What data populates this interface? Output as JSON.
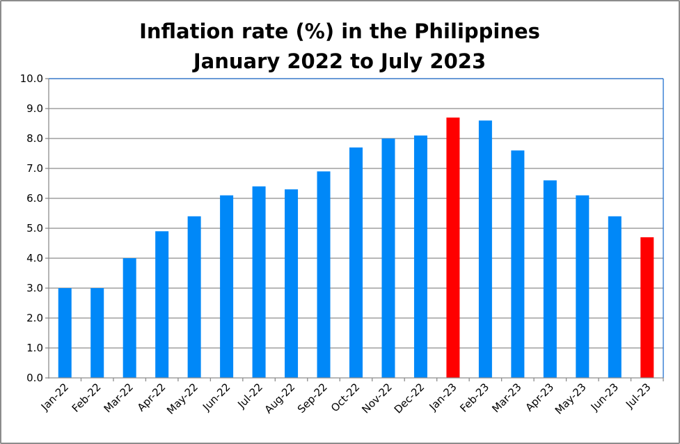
{
  "chart_data": {
    "type": "bar",
    "title": [
      "Inflation rate (%) in the Philippines",
      "January 2022 to July 2023"
    ],
    "xlabel": "",
    "ylabel": "",
    "ylim": [
      0,
      10
    ],
    "yticks": [
      "0.0",
      "1.0",
      "2.0",
      "3.0",
      "4.0",
      "5.0",
      "6.0",
      "7.0",
      "8.0",
      "9.0",
      "10.0"
    ],
    "grid": true,
    "legend": "none",
    "categories": [
      "Jan-22",
      "Feb-22",
      "Mar-22",
      "Apr-22",
      "May-22",
      "Jun-22",
      "Jul-22",
      "Aug-22",
      "Sep-22",
      "Oct-22",
      "Nov-22",
      "Dec-22",
      "Jan-23",
      "Feb-23",
      "Mar-23",
      "Apr-23",
      "May-23",
      "Jun-23",
      "Jul-23"
    ],
    "values": [
      3.0,
      3.0,
      4.0,
      4.9,
      5.4,
      6.1,
      6.4,
      6.3,
      6.9,
      7.7,
      8.0,
      8.1,
      8.7,
      8.6,
      7.6,
      6.6,
      6.1,
      5.4,
      4.7
    ],
    "highlighted": [
      "Jan-23",
      "Jul-23"
    ],
    "colors": {
      "bar": "#0088f8",
      "highlight": "#ff0000",
      "grid": "#8c8c8c"
    }
  }
}
